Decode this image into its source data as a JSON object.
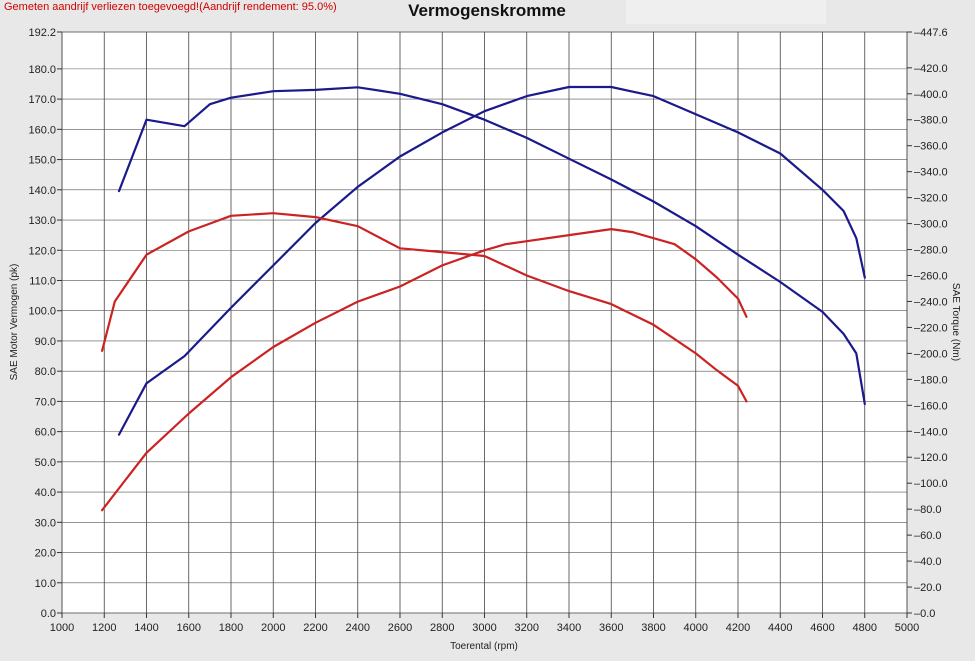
{
  "chart_data": {
    "type": "line",
    "title": "Vermogenskromme",
    "note": "Gemeten aandrijf verliezen toegevoegd!(Aandrijf rendement: 95.0%)",
    "xlabel": "Toerental (rpm)",
    "ylabel_left": "SAE Motor Vermogen (pk)",
    "ylabel_right": "SAE Torque (Nm)",
    "xlim": [
      1000,
      5000
    ],
    "ylim_left": [
      0,
      192.2
    ],
    "ylim_right": [
      0,
      447.6
    ],
    "x_ticks": [
      1000,
      1200,
      1400,
      1600,
      1800,
      2000,
      2200,
      2400,
      2600,
      2800,
      3000,
      3200,
      3400,
      3600,
      3800,
      4000,
      4200,
      4400,
      4600,
      4800,
      5000
    ],
    "x_tick_labels": [
      "1000",
      "1200",
      "1400",
      "1600",
      "1800",
      "2000",
      "2200",
      "2400",
      "2600",
      "2800",
      "3000",
      "3200",
      "3400",
      "3600",
      "3800",
      "4000",
      "4200",
      "4400",
      "4600",
      "4800",
      "5000"
    ],
    "y_left_ticks": [
      0,
      10,
      20,
      30,
      40,
      50,
      60,
      70,
      80,
      90,
      100,
      110,
      120,
      130,
      140,
      150,
      160,
      170,
      180,
      192.2
    ],
    "y_left_tick_labels": [
      "0.0",
      "10.0",
      "20.0",
      "30.0",
      "40.0",
      "50.0",
      "60.0",
      "70.0",
      "80.0",
      "90.0",
      "100.0",
      "110.0",
      "120.0",
      "130.0",
      "140.0",
      "150.0",
      "160.0",
      "170.0",
      "180.0",
      "192.2"
    ],
    "y_right_ticks": [
      0,
      20,
      40,
      60,
      80,
      100,
      120,
      140,
      160,
      180,
      200,
      220,
      240,
      260,
      280,
      300,
      320,
      340,
      360,
      380,
      400,
      420,
      447.6
    ],
    "y_right_tick_labels": [
      "0.0",
      "20.0",
      "40.0",
      "60.0",
      "80.0",
      "100.0",
      "120.0",
      "140.0",
      "160.0",
      "180.0",
      "200.0",
      "220.0",
      "240.0",
      "260.0",
      "280.0",
      "300.0",
      "320.0",
      "340.0",
      "360.0",
      "380.0",
      "400.0",
      "420.0",
      "447.6"
    ],
    "grid": true,
    "colors": {
      "blue": "#1a1a8c",
      "red": "#cc2222"
    },
    "series": [
      {
        "color": "blue",
        "axis": "left",
        "x": [
          1270,
          1400,
          1580,
          1800,
          2000,
          2200,
          2400,
          2600,
          2800,
          3000,
          3200,
          3400,
          3600,
          3800,
          4000,
          4200,
          4400,
          4600,
          4700,
          4760,
          4800
        ],
        "y": [
          59,
          76,
          85,
          101,
          115,
          129,
          141,
          151,
          159,
          166,
          171,
          174,
          174,
          171,
          165,
          159,
          152,
          140,
          133,
          124,
          111
        ]
      },
      {
        "color": "blue",
        "axis": "right",
        "x": [
          1270,
          1400,
          1580,
          1700,
          1800,
          2000,
          2200,
          2400,
          2600,
          2800,
          3000,
          3200,
          3400,
          3600,
          3800,
          4000,
          4200,
          4400,
          4600,
          4700,
          4760,
          4800
        ],
        "y": [
          325,
          380,
          375,
          392,
          397,
          402,
          403,
          405,
          400,
          392,
          380,
          366,
          350,
          334,
          317,
          298,
          276,
          255,
          232,
          215,
          200,
          161
        ]
      },
      {
        "color": "red",
        "axis": "left",
        "x": [
          1190,
          1300,
          1400,
          1600,
          1800,
          2000,
          2200,
          2400,
          2600,
          2800,
          3000,
          3100,
          3200,
          3400,
          3600,
          3700,
          3900,
          4000,
          4100,
          4200,
          4240
        ],
        "y": [
          34,
          44,
          53,
          66,
          78,
          88,
          96,
          103,
          108,
          115,
          120,
          122,
          123,
          125,
          127,
          126,
          122,
          117,
          111,
          104,
          98
        ]
      },
      {
        "color": "red",
        "axis": "right",
        "x": [
          1190,
          1250,
          1400,
          1600,
          1700,
          1800,
          2000,
          2200,
          2400,
          2600,
          2800,
          3000,
          3200,
          3400,
          3600,
          3800,
          4000,
          4100,
          4200,
          4240
        ],
        "y": [
          202,
          240,
          276,
          294,
          300,
          306,
          308,
          305,
          298,
          281,
          278,
          275,
          260,
          248,
          238,
          222,
          200,
          187,
          175,
          163
        ]
      }
    ]
  }
}
